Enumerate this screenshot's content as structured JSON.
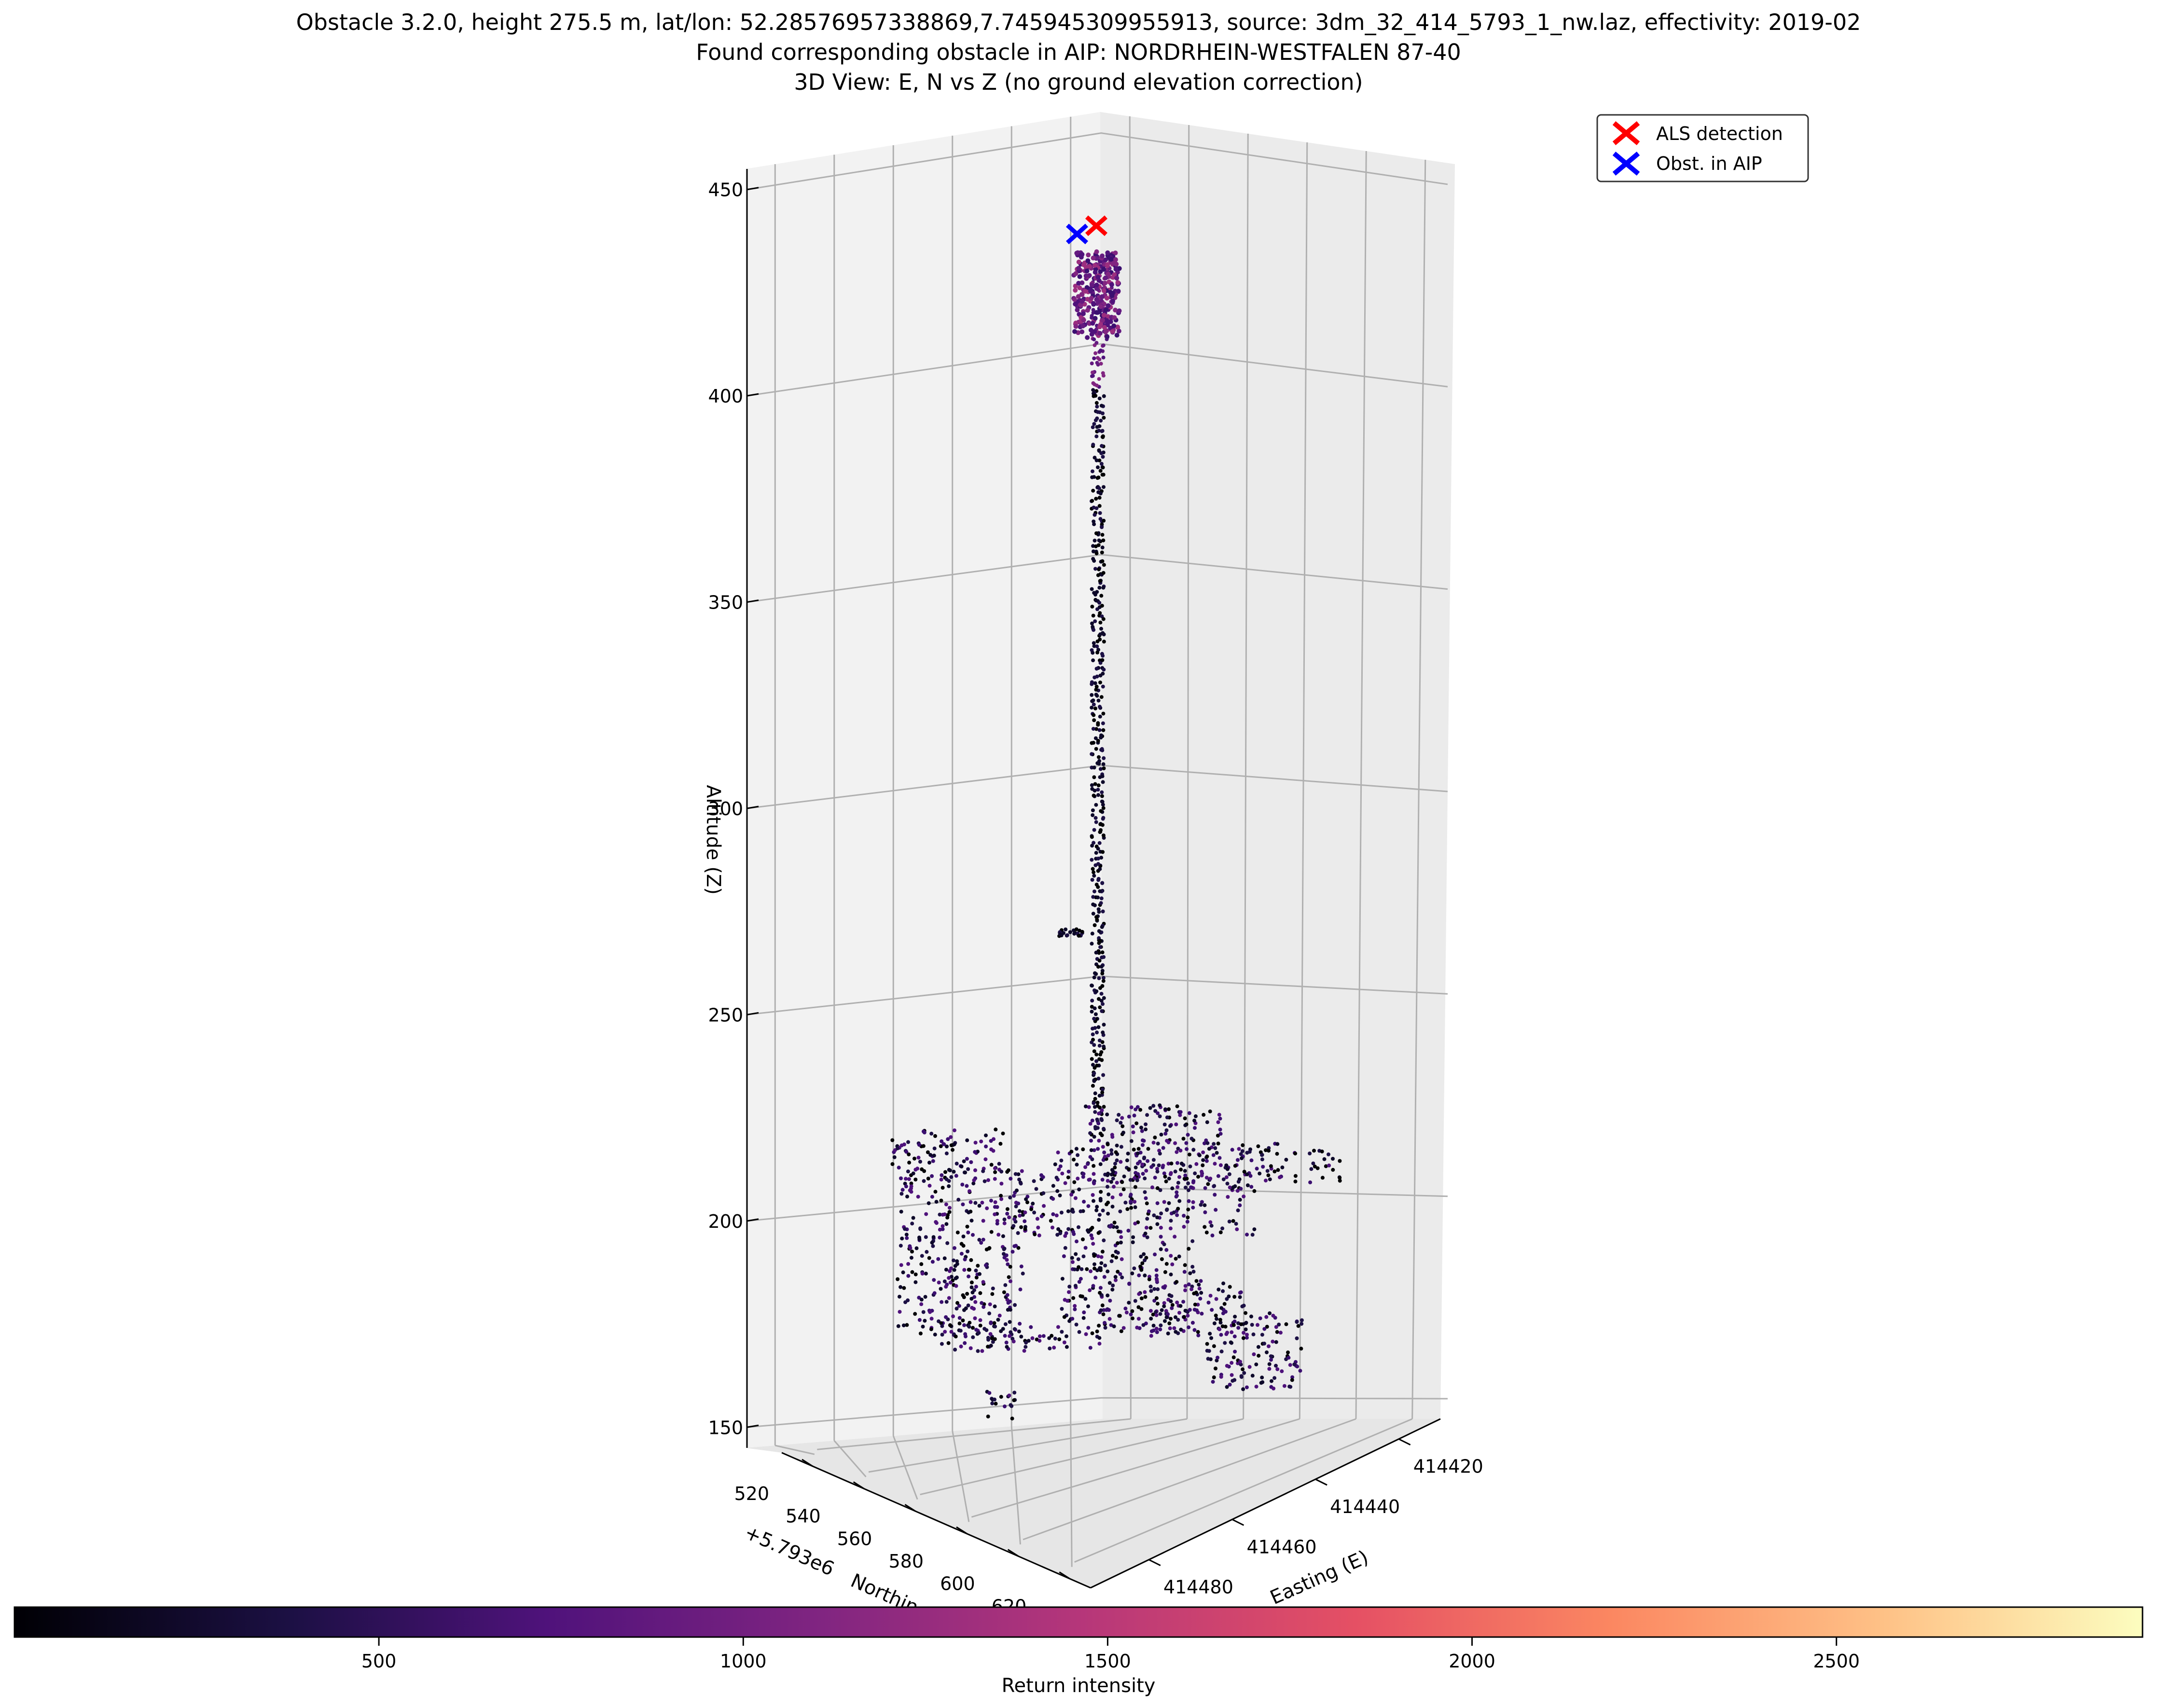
{
  "chart_data": {
    "type": "scatter",
    "title_lines": [
      "Obstacle 3.2.0, height 275.5 m, lat/lon: 52.28576957338869,7.745945309955913, source: 3dm_32_414_5793_1_nw.laz, effectivity: 2019-02",
      "Found corresponding obstacle in AIP: NORDRHEIN-WESTFALEN 87-40",
      "3D View: E, N vs Z (no ground elevation correction)"
    ],
    "zlabel": "Altitude (Z)",
    "z_ticks": [
      "150",
      "200",
      "250",
      "300",
      "350",
      "400",
      "450"
    ],
    "zlim": [
      145,
      455
    ],
    "ylabel": "Northing (N)",
    "y_offset_label": "+5.793e6",
    "y_ticks": [
      "520",
      "540",
      "560",
      "580",
      "600",
      "620"
    ],
    "xlabel": "Easting (E)",
    "x_ticks": [
      "414420",
      "414440",
      "414460",
      "414480"
    ],
    "legend": {
      "placement": "top-right",
      "entries": [
        {
          "label": "ALS detection",
          "color": "#ff0000",
          "marker": "x"
        },
        {
          "label": "Obst. in AIP",
          "color": "#0000ff",
          "marker": "x"
        }
      ]
    },
    "markers": [
      {
        "name": "ALS detection",
        "z": 450.0
      },
      {
        "name": "Obst. in AIP",
        "z": 448.0
      }
    ],
    "colorbar": {
      "label": "Return intensity",
      "colormap": "magma",
      "range": [
        0,
        2920
      ],
      "ticks": [
        "500",
        "1000",
        "1500",
        "2000",
        "2500"
      ],
      "tick_values": [
        500,
        1000,
        1500,
        2000,
        2500
      ],
      "orientation": "horizontal"
    },
    "grid": true,
    "panes_color": "#f2f2f2"
  }
}
